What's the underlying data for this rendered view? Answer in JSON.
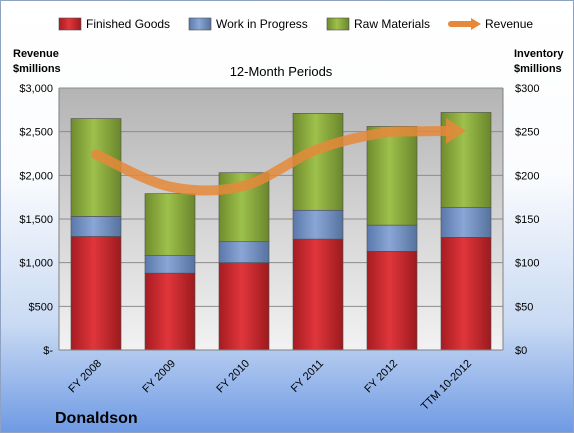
{
  "chart_data": {
    "type": "bar",
    "stacked": true,
    "subtitle": "12-Month Periods",
    "company": "Donaldson",
    "ylabel_left": [
      "Revenue",
      "$millions"
    ],
    "ylabel_right": [
      "Inventory",
      "$millions"
    ],
    "categories": [
      "FY 2008",
      "FY 2009",
      "FY 2010",
      "FY 2011",
      "FY 2012",
      "TTM 10-2012"
    ],
    "series": [
      {
        "name": "Finished Goods",
        "axis": "right",
        "color": "#c0262b",
        "values": [
          130,
          88,
          100,
          127,
          113,
          129
        ]
      },
      {
        "name": "Work in Progress",
        "axis": "right",
        "color": "#6f8fc4",
        "values": [
          23,
          20,
          24,
          33,
          30,
          34
        ]
      },
      {
        "name": "Raw Materials",
        "axis": "right",
        "color": "#8aaa3c",
        "values": [
          112,
          71,
          79,
          111,
          113,
          109
        ]
      },
      {
        "name": "Revenue",
        "axis": "left",
        "type": "line",
        "color": "#e5883a",
        "values": [
          2240,
          1870,
          1880,
          2300,
          2500,
          2510
        ]
      }
    ],
    "y_left": {
      "min": 0,
      "max": 3000,
      "step": 500,
      "ticks": [
        "$-",
        "$500",
        "$1,000",
        "$1,500",
        "$2,000",
        "$2,500",
        "$3,000"
      ]
    },
    "y_right": {
      "min": 0,
      "max": 300,
      "step": 50,
      "ticks": [
        "$0",
        "$50",
        "$100",
        "$150",
        "$200",
        "$250",
        "$300"
      ]
    },
    "grid": true,
    "legend_position": "top"
  }
}
